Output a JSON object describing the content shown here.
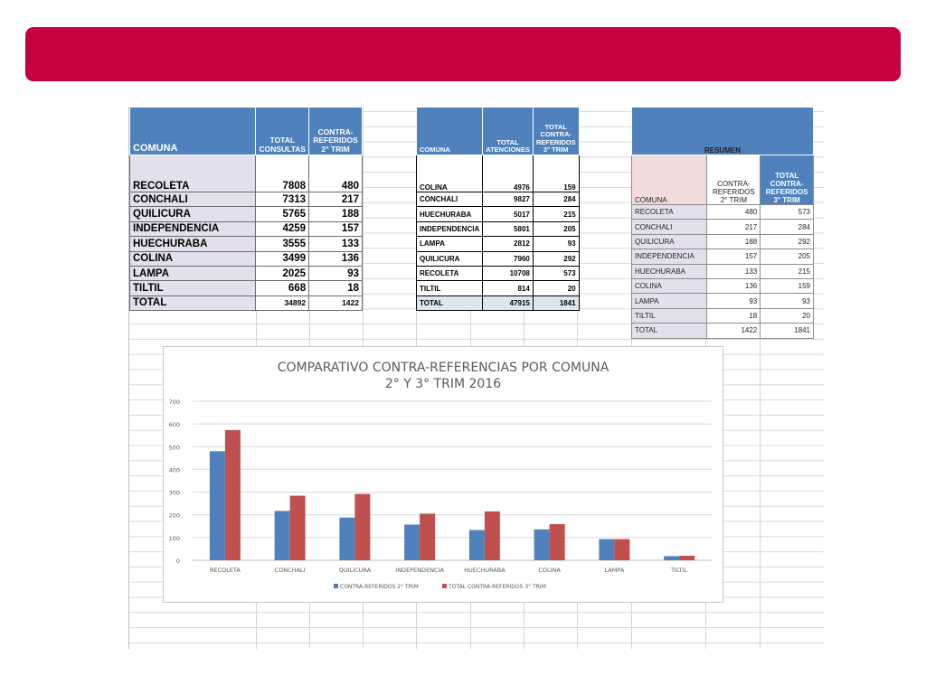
{
  "banner": {
    "color": "#c5003e"
  },
  "table1": {
    "headers": [
      "COMUNA",
      "TOTAL CONSULTAS",
      "CONTRA-REFERIDOS 2° TRIM"
    ],
    "rows": [
      {
        "comuna": "RECOLETA",
        "consultas": "7808",
        "referidos": "480"
      },
      {
        "comuna": "CONCHALI",
        "consultas": "7313",
        "referidos": "217"
      },
      {
        "comuna": "QUILICURA",
        "consultas": "5765",
        "referidos": "188"
      },
      {
        "comuna": "INDEPENDENCIA",
        "consultas": "4259",
        "referidos": "157"
      },
      {
        "comuna": "HUECHURABA",
        "consultas": "3555",
        "referidos": "133"
      },
      {
        "comuna": "COLINA",
        "consultas": "3499",
        "referidos": "136"
      },
      {
        "comuna": "LAMPA",
        "consultas": "2025",
        "referidos": "93"
      },
      {
        "comuna": "TILTIL",
        "consultas": "668",
        "referidos": "18"
      }
    ],
    "total": {
      "label": "TOTAL",
      "consultas": "34892",
      "referidos": "1422"
    }
  },
  "table2": {
    "headers": [
      "COMUNA",
      "TOTAL ATENCIONES",
      "TOTAL CONTRA-REFERIDOS 3° TRIM"
    ],
    "rows": [
      {
        "comuna": "COLINA",
        "atenciones": "4976",
        "referidos": "159"
      },
      {
        "comuna": "CONCHALI",
        "atenciones": "9827",
        "referidos": "284"
      },
      {
        "comuna": "HUECHURABA",
        "atenciones": "5017",
        "referidos": "215"
      },
      {
        "comuna": "INDEPENDENCIA",
        "atenciones": "5801",
        "referidos": "205"
      },
      {
        "comuna": "LAMPA",
        "atenciones": "2812",
        "referidos": "93"
      },
      {
        "comuna": "QUILICURA",
        "atenciones": "7960",
        "referidos": "292"
      },
      {
        "comuna": "RECOLETA",
        "atenciones": "10708",
        "referidos": "573"
      },
      {
        "comuna": "TILTIL",
        "atenciones": "814",
        "referidos": "20"
      }
    ],
    "total": {
      "label": "TOTAL",
      "atenciones": "47915",
      "referidos": "1841"
    }
  },
  "table3": {
    "title": "RESUMEN",
    "headers": [
      "COMUNA",
      "CONTRA-REFERIDOS 2° TRIM",
      "TOTAL CONTRA-REFERIDOS 3° TRIM"
    ],
    "rows": [
      {
        "comuna": "RECOLETA",
        "t2": "480",
        "t3": "573"
      },
      {
        "comuna": "CONCHALI",
        "t2": "217",
        "t3": "284"
      },
      {
        "comuna": "QUILICURA",
        "t2": "188",
        "t3": "292"
      },
      {
        "comuna": "INDEPENDENCIA",
        "t2": "157",
        "t3": "205"
      },
      {
        "comuna": "HUECHURABA",
        "t2": "133",
        "t3": "215"
      },
      {
        "comuna": "COLINA",
        "t2": "136",
        "t3": "159"
      },
      {
        "comuna": "LAMPA",
        "t2": "93",
        "t3": "93"
      },
      {
        "comuna": "TILTIL",
        "t2": "18",
        "t3": "20"
      }
    ],
    "total": {
      "label": "TOTAL",
      "t2": "1422",
      "t3": "1841"
    }
  },
  "chart_data": {
    "type": "bar",
    "title": "COMPARATIVO CONTRA-REFERENCIAS POR COMUNA",
    "subtitle": "2° Y 3° TRIM  2016",
    "categories": [
      "RECOLETA",
      "CONCHALI",
      "QUILICURA",
      "INDEPENDENCIA",
      "HUECHURABA",
      "COLINA",
      "LAMPA",
      "TILTIL"
    ],
    "series": [
      {
        "name": "CONTRA-REFERIDOS 2° TRIM",
        "values": [
          480,
          217,
          188,
          157,
          133,
          136,
          93,
          18
        ],
        "color": "#4f81bd"
      },
      {
        "name": "TOTAL CONTRA-REFERIDOS 3° TRIM",
        "values": [
          573,
          284,
          292,
          205,
          215,
          159,
          93,
          20
        ],
        "color": "#c0504d"
      }
    ],
    "ylim": [
      0,
      700
    ],
    "yticks": [
      0,
      100,
      200,
      300,
      400,
      500,
      600,
      700
    ],
    "grid": true,
    "legend": "bottom"
  }
}
